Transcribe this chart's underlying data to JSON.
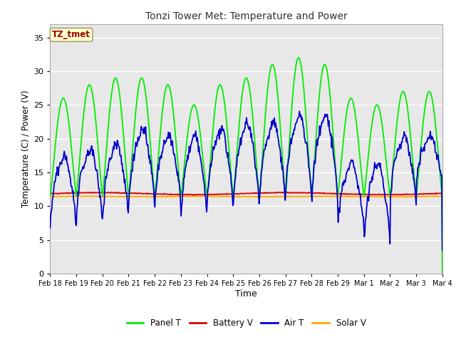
{
  "title": "Tonzi Tower Met: Temperature and Power",
  "xlabel": "Time",
  "ylabel": "Temperature (C) / Power (V)",
  "ylim": [
    0,
    37
  ],
  "yticks": [
    0,
    5,
    10,
    15,
    20,
    25,
    30,
    35
  ],
  "fig_bg_color": "#ffffff",
  "plot_bg_color": "#e8e8e8",
  "grid_color": "#ffffff",
  "annotation_text": "TZ_tmet",
  "annotation_fg": "#990000",
  "annotation_bg": "#ffffcc",
  "annotation_border": "#999966",
  "legend_items": [
    "Panel T",
    "Battery V",
    "Air T",
    "Solar V"
  ],
  "legend_colors": [
    "#00ee00",
    "#dd0000",
    "#0000cc",
    "#ffaa00"
  ],
  "panel_t_color": "#00ee00",
  "battery_v_color": "#dd0000",
  "air_t_color": "#0000cc",
  "solar_v_color": "#ffaa00",
  "line_width": 1.3,
  "xticklabels": [
    "Feb 18",
    "Feb 19",
    "Feb 20",
    "Feb 21",
    "Feb 22",
    "Feb 23",
    "Feb 24",
    "Feb 25",
    "Feb 26",
    "Feb 27",
    "Feb 28",
    "Feb 29",
    "Mar 1",
    "Mar 2",
    "Mar 3",
    "Mar 4"
  ]
}
